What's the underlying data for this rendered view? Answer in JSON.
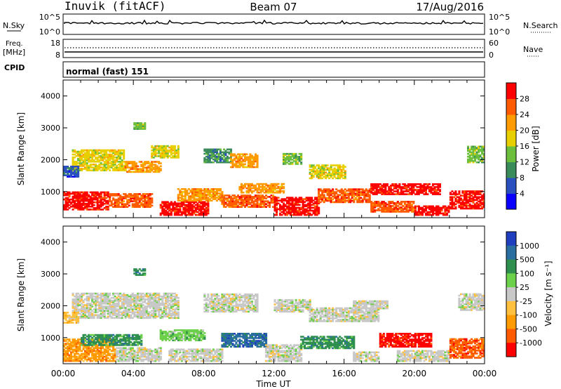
{
  "header": {
    "station": "Inuvik (fitACF)",
    "beam": "Beam 07",
    "date": "17/Aug/2016"
  },
  "strip_panels": {
    "nsky": {
      "label": "N.Sky",
      "ticks": [
        "10^5",
        "10^0"
      ]
    },
    "nsearch": {
      "label": "N.Search",
      "ticks": [
        "10^5",
        "10^0"
      ]
    },
    "freq": {
      "label_line1": "Freq.",
      "label_line2": "[MHz]",
      "ticks": [
        "18",
        "8"
      ]
    },
    "nave": {
      "label": "Nave",
      "ticks": [
        "60",
        "0"
      ]
    },
    "cpid": {
      "label": "CPID",
      "value": "normal (fast) 151"
    }
  },
  "chart_data": [
    {
      "type": "heatmap",
      "name": "power",
      "ylabel": "Slant Range [km]",
      "ylim": [
        180,
        4500
      ],
      "yticks": [
        1000,
        2000,
        3000,
        4000
      ],
      "xlim": [
        0,
        24
      ],
      "colorbar": {
        "label": "Power [dB]",
        "range": [
          0,
          32
        ],
        "ticks": [
          "4",
          "8",
          "12",
          "16",
          "20",
          "24",
          "28"
        ],
        "colors": [
          "#0a00ff",
          "#2a4fbf",
          "#3a8c5a",
          "#6cbf3c",
          "#e8d000",
          "#ff9a00",
          "#ff5a00",
          "#ff0000"
        ]
      },
      "bands": [
        {
          "t0": 0.0,
          "t1": 2.6,
          "r0": 420,
          "r1": 980,
          "c": 7
        },
        {
          "t0": 2.6,
          "t1": 5.0,
          "r0": 500,
          "r1": 950,
          "c": 6
        },
        {
          "t0": 5.5,
          "t1": 8.2,
          "r0": 250,
          "r1": 700,
          "c": 7
        },
        {
          "t0": 6.5,
          "t1": 9.0,
          "r0": 700,
          "r1": 1100,
          "c": 5
        },
        {
          "t0": 9.0,
          "t1": 12.0,
          "r0": 500,
          "r1": 900,
          "c": 6
        },
        {
          "t0": 10.0,
          "t1": 12.5,
          "r0": 950,
          "r1": 1250,
          "c": 5
        },
        {
          "t0": 12.0,
          "t1": 14.5,
          "r0": 250,
          "r1": 800,
          "c": 7
        },
        {
          "t0": 14.5,
          "t1": 17.5,
          "r0": 650,
          "r1": 1100,
          "c": 6
        },
        {
          "t0": 17.5,
          "t1": 20.0,
          "r0": 350,
          "r1": 700,
          "c": 6
        },
        {
          "t0": 17.5,
          "t1": 21.5,
          "r0": 900,
          "r1": 1250,
          "c": 7
        },
        {
          "t0": 20.0,
          "t1": 22.0,
          "r0": 250,
          "r1": 550,
          "c": 7
        },
        {
          "t0": 22.0,
          "t1": 24.0,
          "r0": 450,
          "r1": 1000,
          "c": 7
        },
        {
          "t0": 0.5,
          "t1": 3.5,
          "r0": 1650,
          "r1": 2300,
          "c": 4
        },
        {
          "t0": 3.5,
          "t1": 5.5,
          "r0": 1600,
          "r1": 1950,
          "c": 5
        },
        {
          "t0": 5.0,
          "t1": 6.5,
          "r0": 2050,
          "r1": 2450,
          "c": 4
        },
        {
          "t0": 8.0,
          "t1": 9.5,
          "r0": 1900,
          "r1": 2350,
          "c": 2
        },
        {
          "t0": 9.5,
          "t1": 11.0,
          "r0": 1750,
          "r1": 2200,
          "c": 5
        },
        {
          "t0": 12.5,
          "t1": 13.5,
          "r0": 1850,
          "r1": 2200,
          "c": 3
        },
        {
          "t0": 14.0,
          "t1": 16.0,
          "r0": 1400,
          "r1": 1850,
          "c": 4
        },
        {
          "t0": 23.0,
          "t1": 24.0,
          "r0": 1900,
          "r1": 2400,
          "c": 3
        },
        {
          "t0": 0.0,
          "t1": 0.8,
          "r0": 1450,
          "r1": 1800,
          "c": 1
        },
        {
          "t0": 4.0,
          "t1": 4.6,
          "r0": 2950,
          "r1": 3150,
          "c": 3
        }
      ]
    },
    {
      "type": "heatmap",
      "name": "velocity",
      "ylabel": "Slant Range [km]",
      "ylim": [
        180,
        4500
      ],
      "yticks": [
        1000,
        2000,
        3000,
        4000
      ],
      "xlim": [
        0,
        24
      ],
      "xlabel": "Time UT",
      "xticks": [
        "00:00",
        "04:00",
        "08:00",
        "12:00",
        "16:00",
        "20:00",
        "00:00"
      ],
      "colorbar": {
        "label": "Velocity [m s⁻¹]",
        "ticks": [
          "1000",
          "500",
          "100",
          "25",
          "-25",
          "-100",
          "-500",
          "-1000"
        ],
        "colors": [
          "#1f3fbf",
          "#2a6ea0",
          "#2f8f4f",
          "#6cd04a",
          "#c8c8c8",
          "#ffc040",
          "#ff9a00",
          "#ff5a00",
          "#ff0000"
        ]
      },
      "bands": [
        {
          "t0": 0.0,
          "t1": 3.0,
          "r0": 250,
          "r1": 950,
          "c": 6
        },
        {
          "t0": 1.0,
          "t1": 4.5,
          "r0": 750,
          "r1": 1100,
          "c": 2
        },
        {
          "t0": 3.0,
          "t1": 5.5,
          "r0": 250,
          "r1": 700,
          "c": 4
        },
        {
          "t0": 5.5,
          "t1": 8.0,
          "r0": 900,
          "r1": 1250,
          "c": 3
        },
        {
          "t0": 6.0,
          "t1": 9.0,
          "r0": 250,
          "r1": 650,
          "c": 4
        },
        {
          "t0": 9.0,
          "t1": 11.5,
          "r0": 700,
          "r1": 1150,
          "c": 1
        },
        {
          "t0": 11.5,
          "t1": 13.5,
          "r0": 250,
          "r1": 750,
          "c": 4
        },
        {
          "t0": 13.5,
          "t1": 16.5,
          "r0": 650,
          "r1": 1050,
          "c": 2
        },
        {
          "t0": 16.5,
          "t1": 18.0,
          "r0": 250,
          "r1": 550,
          "c": 4
        },
        {
          "t0": 18.0,
          "t1": 21.0,
          "r0": 700,
          "r1": 1150,
          "c": 8
        },
        {
          "t0": 19.0,
          "t1": 22.0,
          "r0": 250,
          "r1": 600,
          "c": 4
        },
        {
          "t0": 22.0,
          "t1": 24.0,
          "r0": 350,
          "r1": 950,
          "c": 7
        },
        {
          "t0": 0.5,
          "t1": 6.5,
          "r0": 1600,
          "r1": 2400,
          "c": 4
        },
        {
          "t0": 8.0,
          "t1": 11.0,
          "r0": 1800,
          "r1": 2350,
          "c": 4
        },
        {
          "t0": 12.0,
          "t1": 14.0,
          "r0": 1800,
          "r1": 2200,
          "c": 4
        },
        {
          "t0": 14.0,
          "t1": 18.0,
          "r0": 1500,
          "r1": 1950,
          "c": 4
        },
        {
          "t0": 16.5,
          "t1": 18.5,
          "r0": 1900,
          "r1": 2150,
          "c": 4
        },
        {
          "t0": 22.5,
          "t1": 24.0,
          "r0": 1850,
          "r1": 2350,
          "c": 4
        },
        {
          "t0": 0.0,
          "t1": 0.8,
          "r0": 1450,
          "r1": 1800,
          "c": 5
        },
        {
          "t0": 4.0,
          "t1": 4.6,
          "r0": 2950,
          "r1": 3150,
          "c": 2
        }
      ]
    }
  ]
}
